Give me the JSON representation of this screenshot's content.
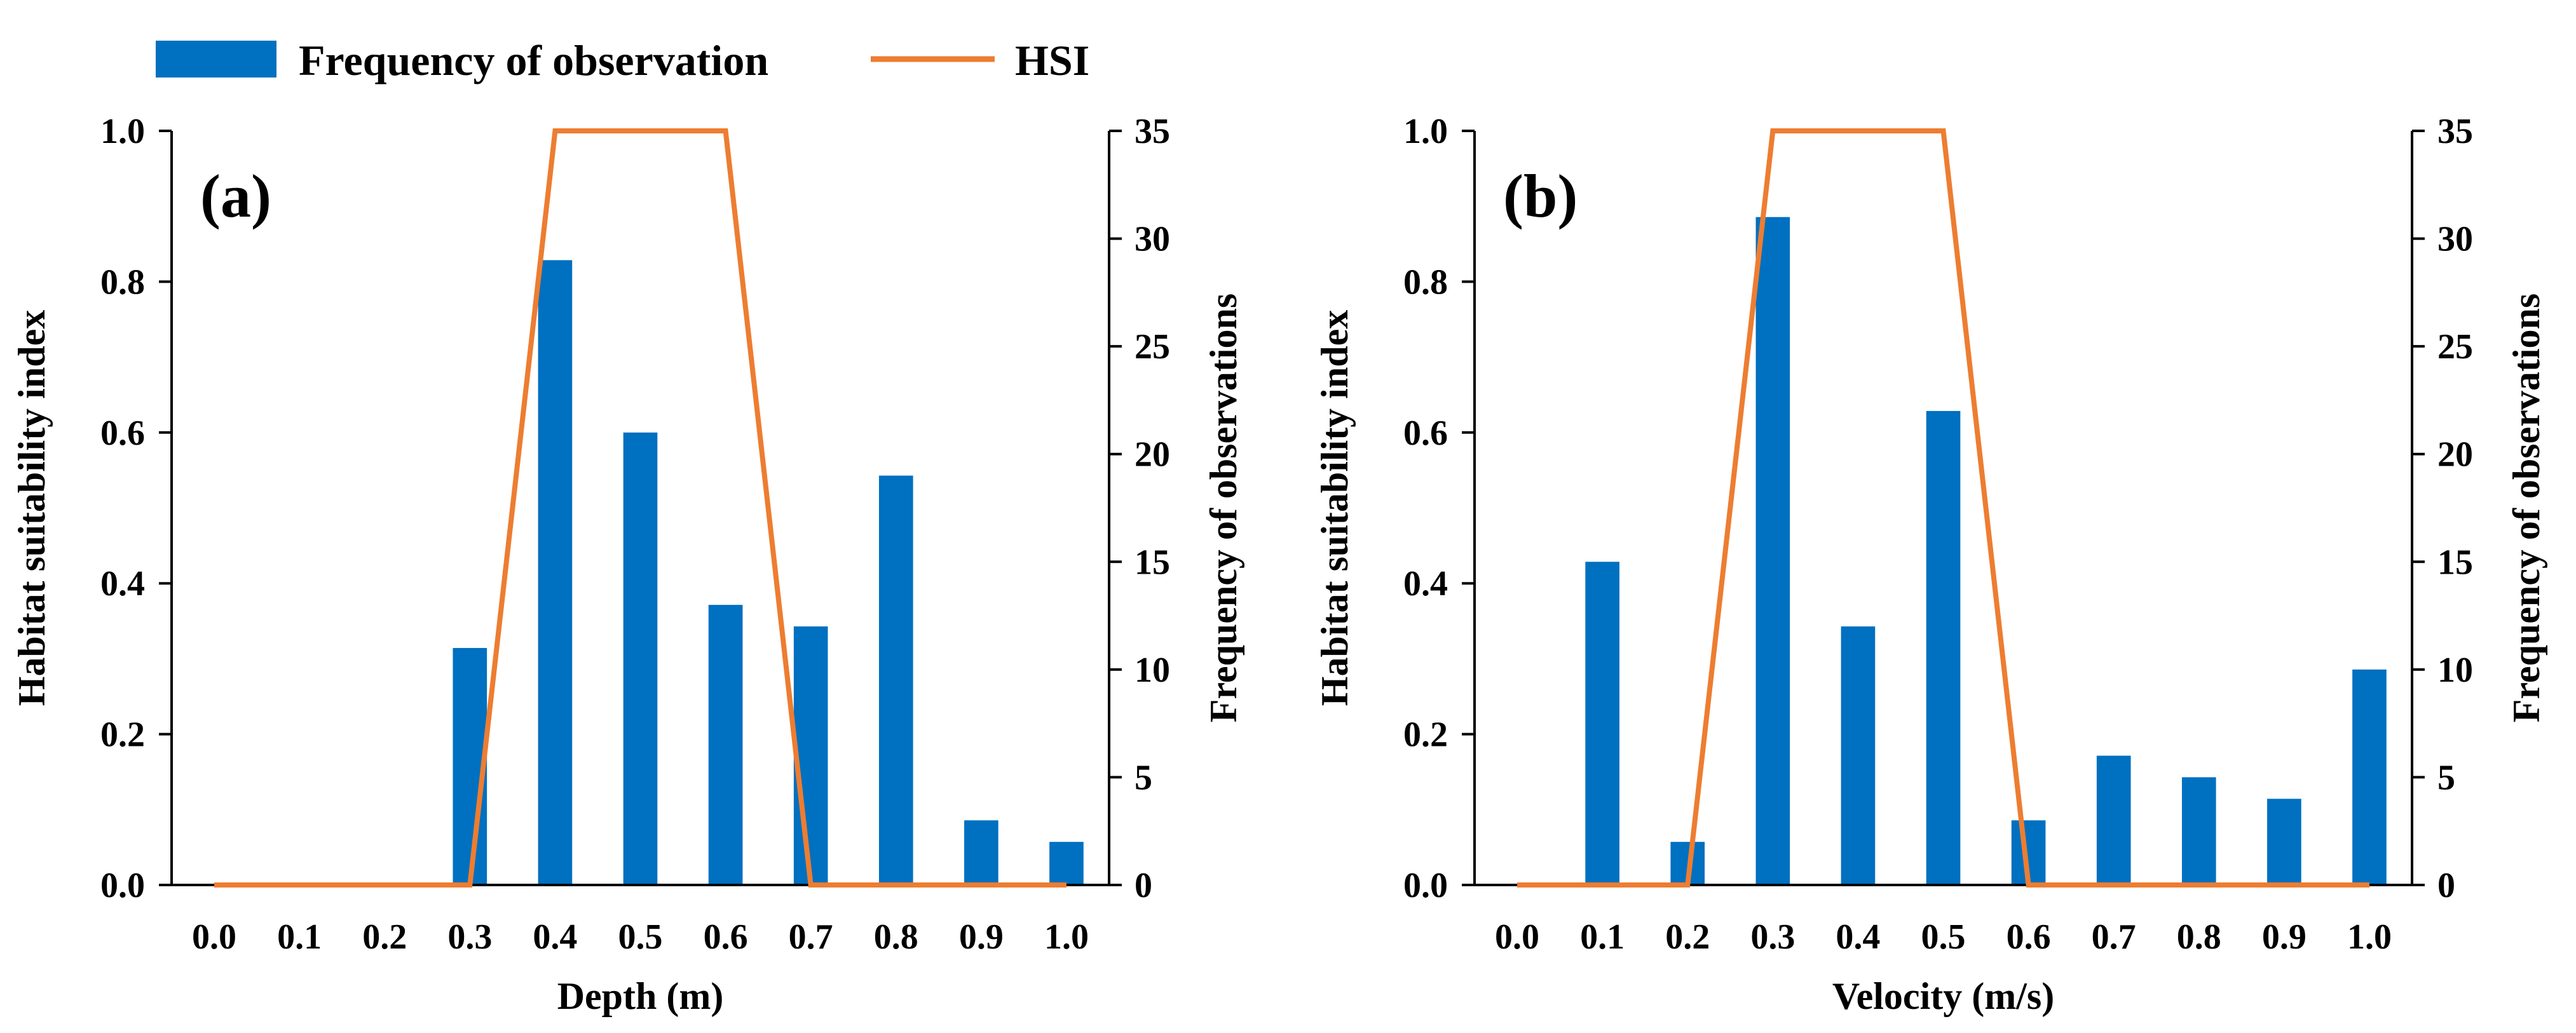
{
  "legend": {
    "bar_label": "Frequency of observation",
    "line_label": "HSI",
    "bar_color": "#0070C0",
    "line_color": "#ED7D31"
  },
  "chart_data": [
    {
      "type": "bar+line",
      "panel_label": "(a)",
      "xlabel": "Depth (m)",
      "ylabel_left": "Habitat suitability index",
      "ylabel_right": "Frequency of observations",
      "categories": [
        "0.0",
        "0.1",
        "0.2",
        "0.3",
        "0.4",
        "0.5",
        "0.6",
        "0.7",
        "0.8",
        "0.9",
        "1.0"
      ],
      "ylim_left": [
        0,
        1.0
      ],
      "yticks_left": [
        "0.0",
        "0.2",
        "0.4",
        "0.6",
        "0.8",
        "1.0"
      ],
      "ylim_right": [
        0,
        35
      ],
      "yticks_right": [
        "0",
        "5",
        "10",
        "15",
        "20",
        "25",
        "30",
        "35"
      ],
      "series": [
        {
          "name": "Frequency of observation",
          "axis": "right",
          "kind": "bar",
          "values": [
            0,
            0,
            0,
            11,
            29,
            21,
            13,
            12,
            19,
            3,
            2
          ]
        },
        {
          "name": "HSI",
          "axis": "left",
          "kind": "line",
          "values": [
            0,
            0,
            0,
            0,
            1.0,
            1.0,
            1.0,
            0,
            0,
            0,
            0
          ]
        }
      ]
    },
    {
      "type": "bar+line",
      "panel_label": "(b)",
      "xlabel": "Velocity (m/s)",
      "ylabel_left": "Habitat suitability index",
      "ylabel_right": "Frequency of observations",
      "categories": [
        "0.0",
        "0.1",
        "0.2",
        "0.3",
        "0.4",
        "0.5",
        "0.6",
        "0.7",
        "0.8",
        "0.9",
        "1.0"
      ],
      "ylim_left": [
        0,
        1.0
      ],
      "yticks_left": [
        "0.0",
        "0.2",
        "0.4",
        "0.6",
        "0.8",
        "1.0"
      ],
      "ylim_right": [
        0,
        35
      ],
      "yticks_right": [
        "0",
        "5",
        "10",
        "15",
        "20",
        "25",
        "30",
        "35"
      ],
      "series": [
        {
          "name": "Frequency of observation",
          "axis": "right",
          "kind": "bar",
          "values": [
            0,
            15,
            2,
            31,
            12,
            22,
            3,
            6,
            5,
            4,
            10
          ]
        },
        {
          "name": "HSI",
          "axis": "left",
          "kind": "line",
          "values": [
            0,
            0,
            0,
            1.0,
            1.0,
            1.0,
            0,
            0,
            0,
            0,
            0
          ]
        }
      ]
    }
  ]
}
